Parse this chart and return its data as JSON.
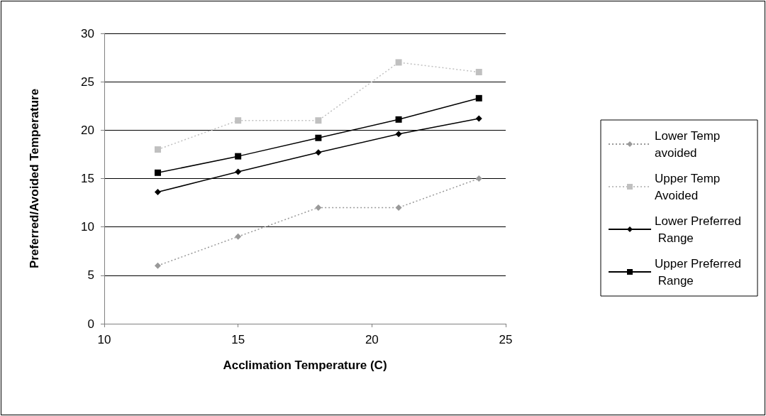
{
  "chart_data": {
    "type": "line",
    "xlabel": "Acclimation Temperature (C)",
    "ylabel": "Preferred/Avoided Temperature",
    "x": [
      12,
      15,
      18,
      21,
      24
    ],
    "xlim": [
      10,
      25
    ],
    "xticks": [
      10,
      15,
      20,
      25
    ],
    "ylim": [
      0,
      30
    ],
    "yticks": [
      0,
      5,
      10,
      15,
      20,
      25,
      30
    ],
    "grid": "y",
    "legend": "right",
    "series": [
      {
        "name": "Lower Temp avoided",
        "color": "#999999",
        "marker": "diamond",
        "line_style": "dotted",
        "values": [
          6,
          9,
          12,
          12,
          15
        ]
      },
      {
        "name": "Upper Temp Avoided",
        "color": "#c0c0c0",
        "marker": "square",
        "line_style": "dotted",
        "values": [
          18,
          21,
          21,
          27,
          26
        ]
      },
      {
        "name": "Lower Preferred Range",
        "color": "#000000",
        "marker": "diamond",
        "line_style": "solid",
        "values": [
          13.6,
          15.7,
          17.7,
          19.6,
          21.2
        ]
      },
      {
        "name": "Upper Preferred Range",
        "color": "#000000",
        "marker": "square",
        "line_style": "solid",
        "values": [
          15.6,
          17.3,
          19.2,
          21.1,
          23.3
        ]
      }
    ]
  }
}
